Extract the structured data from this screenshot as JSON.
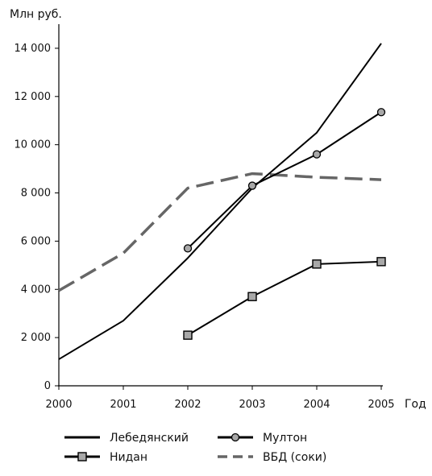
{
  "chart_data": {
    "type": "line",
    "ylabel": "Млн руб.",
    "xlabel": "Год",
    "x": [
      2000,
      2001,
      2002,
      2003,
      2004,
      2005
    ],
    "xlim": [
      2000,
      2005
    ],
    "ylim": [
      0,
      15000
    ],
    "yticks": [
      0,
      2000,
      4000,
      6000,
      8000,
      10000,
      12000,
      14000
    ],
    "ytick_labels": [
      "0",
      "2 000",
      "4 000",
      "6 000",
      "8 000",
      "10 000",
      "12 000",
      "14 000"
    ],
    "xtick_labels": [
      "2000",
      "2001",
      "2002",
      "2003",
      "2004",
      "2005"
    ],
    "grid": false,
    "legend_position": "bottom",
    "series": [
      {
        "name": "Лебедянский",
        "style": "solid",
        "marker": "none",
        "color": "#000000",
        "x": [
          2000,
          2001,
          2002,
          2003,
          2004,
          2005
        ],
        "values": [
          1100,
          2700,
          5300,
          8200,
          10500,
          14200
        ]
      },
      {
        "name": "Мултон",
        "style": "solid",
        "marker": "circle",
        "color": "#000000",
        "x": [
          2002,
          2003,
          2004,
          2005
        ],
        "values": [
          5700,
          8300,
          9600,
          11350
        ]
      },
      {
        "name": "Нидан",
        "style": "solid",
        "marker": "square",
        "color": "#000000",
        "x": [
          2002,
          2003,
          2004,
          2005
        ],
        "values": [
          2100,
          3700,
          5050,
          5150
        ]
      },
      {
        "name": "ВБД (соки)",
        "style": "dashed",
        "marker": "none",
        "color": "#666666",
        "x": [
          2000,
          2001,
          2002,
          2003,
          2004,
          2005
        ],
        "values": [
          3950,
          5500,
          8200,
          8800,
          8650,
          8550
        ]
      }
    ]
  },
  "colors": {
    "axis": "#000000",
    "marker_fill": "#a8a8a8",
    "dashed": "#666666"
  }
}
